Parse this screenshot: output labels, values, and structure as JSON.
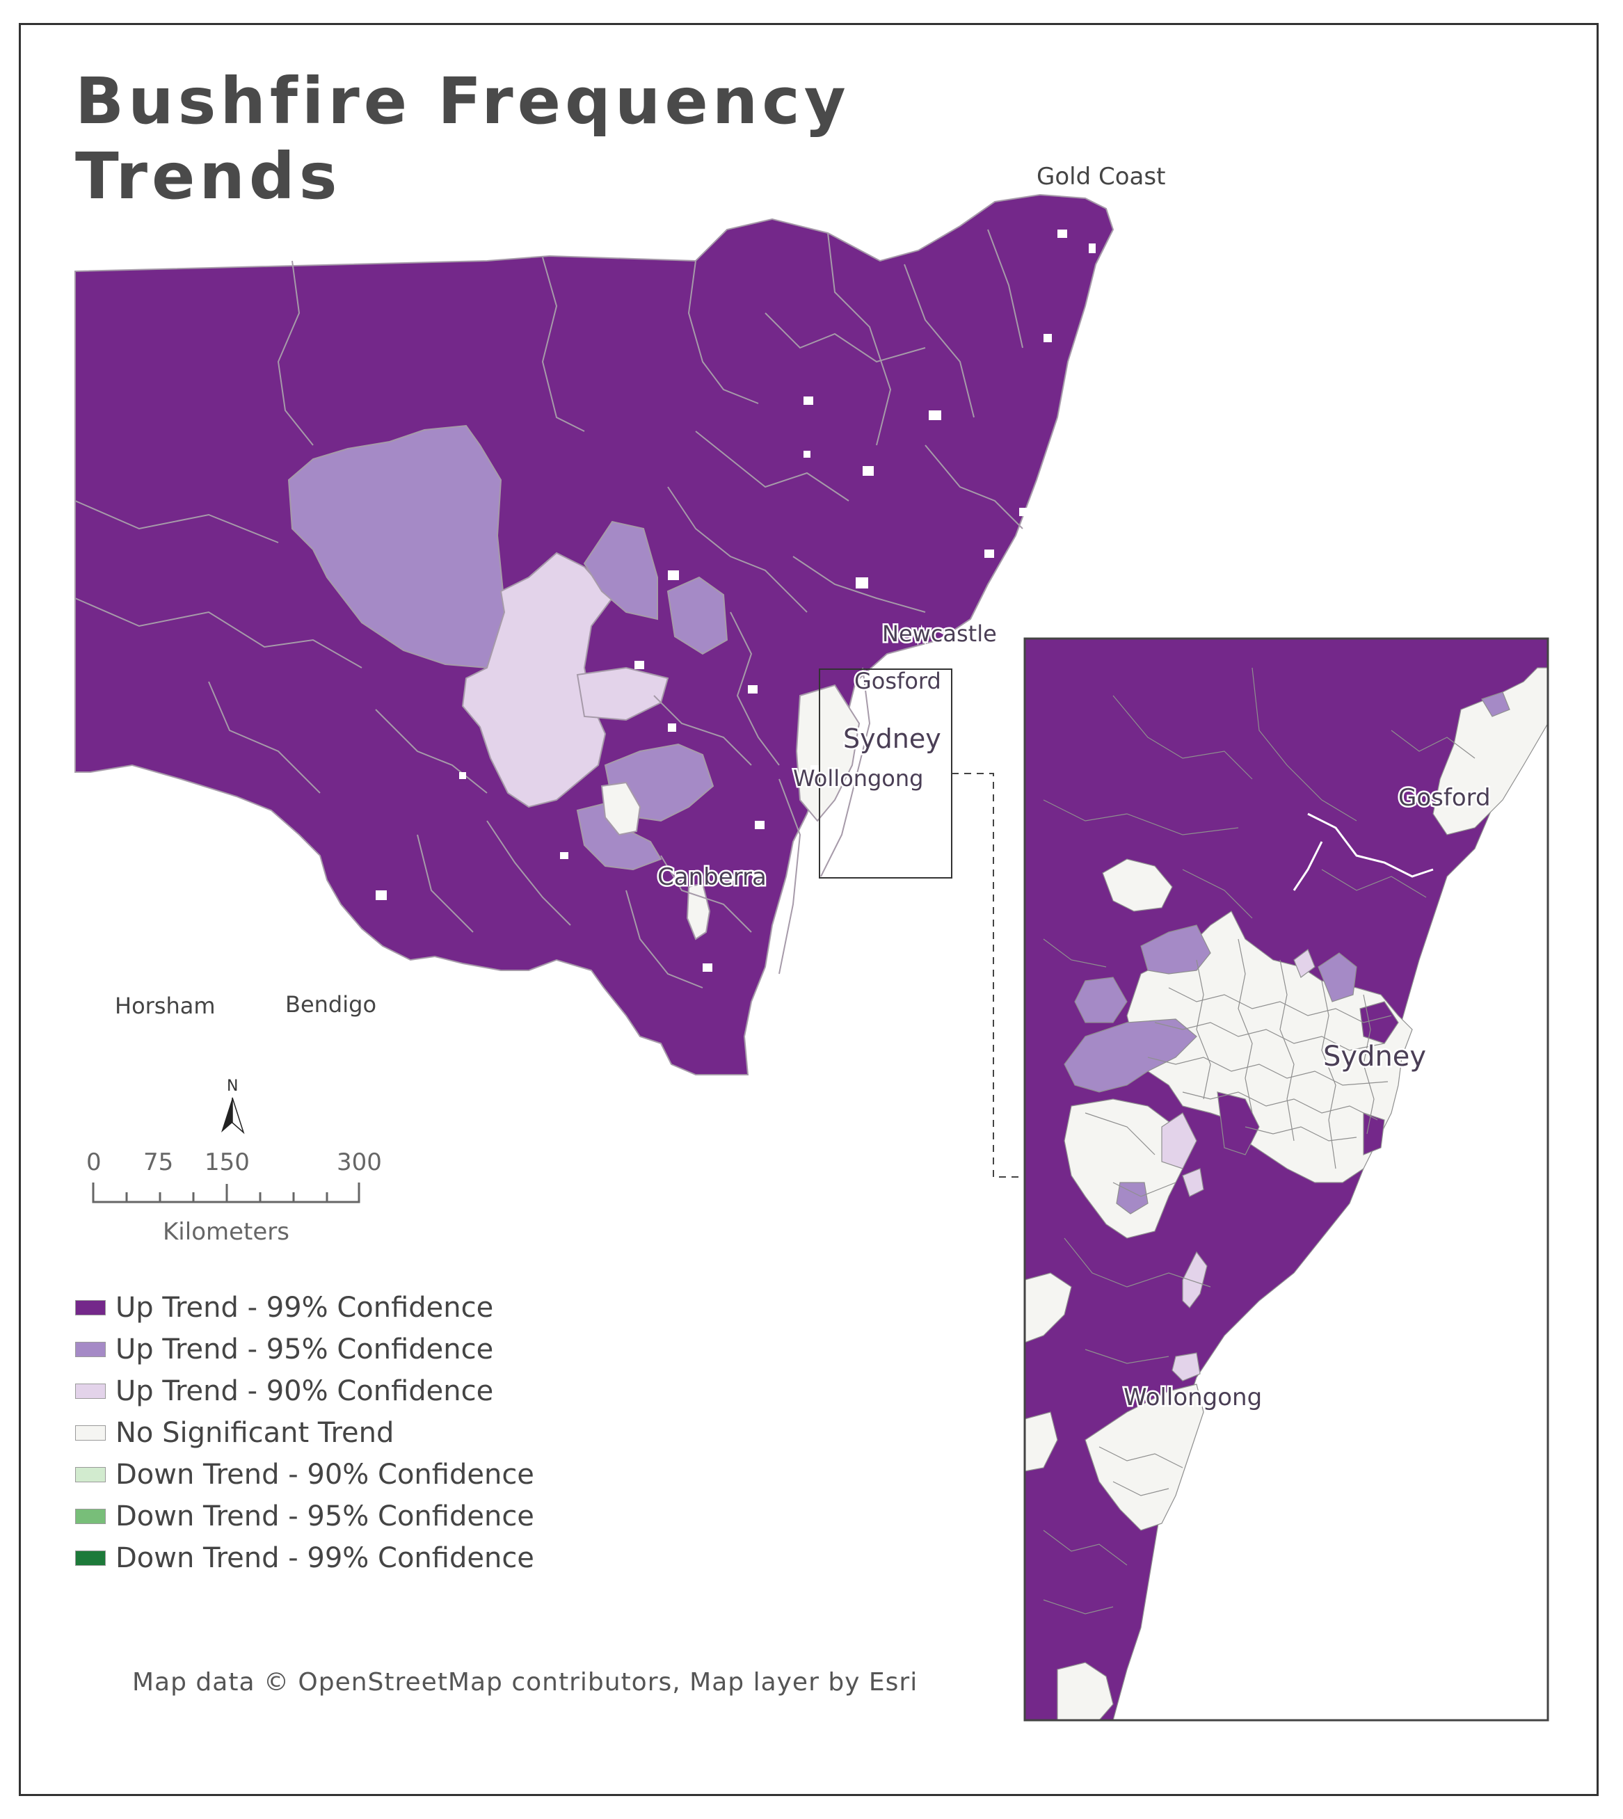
{
  "title": {
    "line1": "Bushfire Frequency",
    "line2": "Trends"
  },
  "colors": {
    "up_99": "#74288a",
    "up_95": "#a58ac6",
    "up_90": "#e3d3ea",
    "no_trend": "#f5f5f2",
    "down_90": "#d2ebcf",
    "down_95": "#78be79",
    "down_99": "#1d7a3a",
    "boundary": "#a69aa9"
  },
  "place_labels": {
    "gold_coast": "Gold Coast",
    "newcastle": "Newcastle",
    "gosford": "Gosford",
    "sydney": "Sydney",
    "wollongong": "Wollongong",
    "canberra": "Canberra",
    "horsham": "Horsham",
    "bendigo": "Bendigo"
  },
  "inset_labels": {
    "gosford": "Gosford",
    "sydney": "Sydney",
    "wollongong": "Wollongong"
  },
  "north_arrow": {
    "label": "N"
  },
  "scale_bar": {
    "ticks": [
      "0",
      "75",
      "150",
      "300"
    ],
    "tick_values": [
      0,
      75,
      150,
      300
    ],
    "unit": "Kilometers"
  },
  "legend": [
    {
      "label": "Up Trend - 99% Confidence",
      "color": "#74288a"
    },
    {
      "label": "Up Trend - 95% Confidence",
      "color": "#a58ac6"
    },
    {
      "label": "Up Trend - 90% Confidence",
      "color": "#e3d3ea"
    },
    {
      "label": "No Significant Trend",
      "color": "#f5f5f2"
    },
    {
      "label": "Down Trend - 90% Confidence",
      "color": "#d2ebcf"
    },
    {
      "label": "Down Trend - 95% Confidence",
      "color": "#78be79"
    },
    {
      "label": "Down Trend - 99% Confidence",
      "color": "#1d7a3a"
    }
  ],
  "attribution": "Map data © OpenStreetMap contributors, Map layer by Esri"
}
